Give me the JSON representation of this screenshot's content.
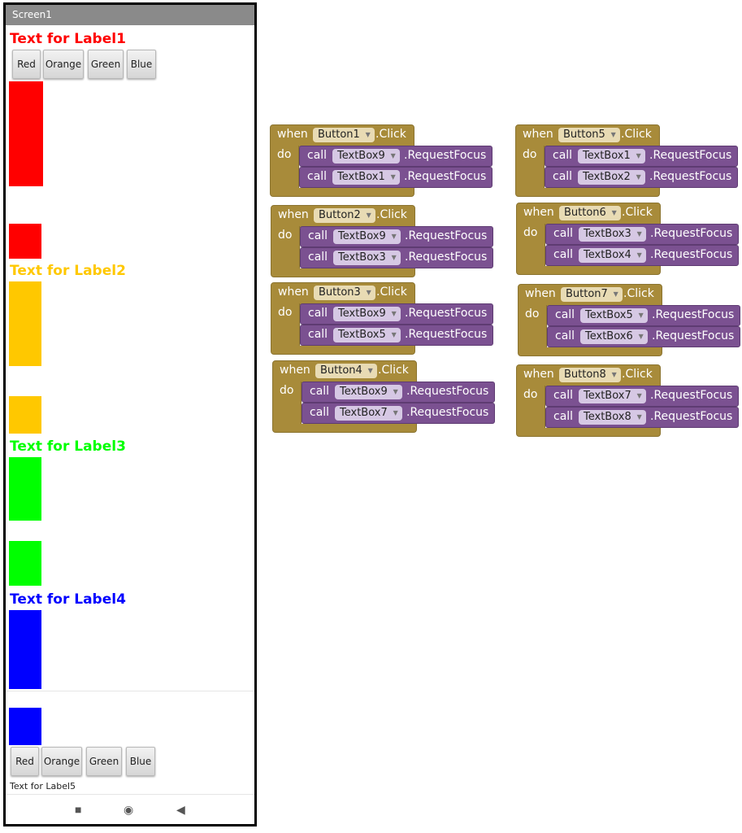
{
  "phone": {
    "title": "Screen1",
    "labels": [
      {
        "text": "Text for Label1",
        "color": "#ff0000"
      },
      {
        "text": "Text for Label2",
        "color": "#ffc800"
      },
      {
        "text": "Text for Label3",
        "color": "#00ff00"
      },
      {
        "text": "Text for Label4",
        "color": "#0000ff"
      }
    ],
    "top_buttons": [
      "Red",
      "Orange",
      "Green",
      "Blue"
    ],
    "bottom_buttons": [
      "Red",
      "Orange",
      "Green",
      "Blue"
    ],
    "label5": "Text for Label5",
    "nav": {
      "square": "■",
      "circle": "◉",
      "back": "◀"
    }
  },
  "blocks": {
    "when_kw": "when",
    "do_kw": "do",
    "call_kw": "call",
    "click_kw": ".Click",
    "method": ".RequestFocus",
    "events": [
      {
        "button": "Button1",
        "targets": [
          "TextBox9",
          "TextBox1"
        ]
      },
      {
        "button": "Button2",
        "targets": [
          "TextBox9",
          "TextBox3"
        ]
      },
      {
        "button": "Button3",
        "targets": [
          "TextBox9",
          "TextBox5"
        ]
      },
      {
        "button": "Button4",
        "targets": [
          "TextBox9",
          "TextBox7"
        ]
      },
      {
        "button": "Button5",
        "targets": [
          "TextBox1",
          "TextBox2"
        ]
      },
      {
        "button": "Button6",
        "targets": [
          "TextBox3",
          "TextBox4"
        ]
      },
      {
        "button": "Button7",
        "targets": [
          "TextBox5",
          "TextBox6"
        ]
      },
      {
        "button": "Button8",
        "targets": [
          "TextBox7",
          "TextBox8"
        ]
      }
    ]
  }
}
